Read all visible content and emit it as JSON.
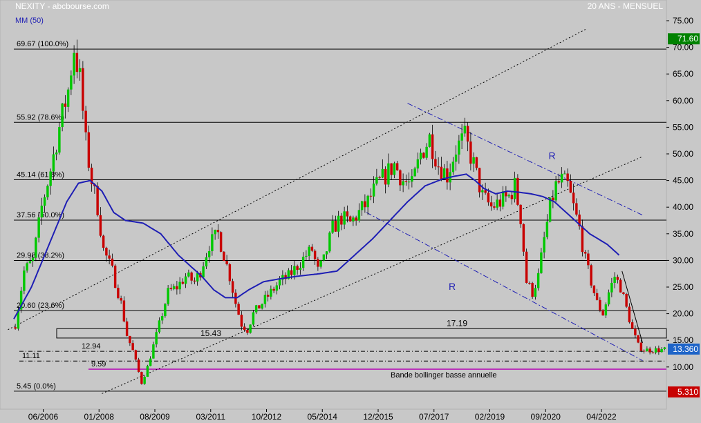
{
  "chart_data": {
    "type": "candlestick",
    "title": "NEXITY - abcbourse.com",
    "subtitle": "20 ANS - MENSUEL",
    "indicator_label": "MM (50)",
    "ylim": [
      4.5,
      77
    ],
    "y_ticks": [
      10,
      15,
      20,
      25,
      30,
      35,
      40,
      45,
      50,
      55,
      60,
      65,
      70,
      75
    ],
    "y_tick_labels": [
      "10.00",
      "15.00",
      "20.00",
      "25.00",
      "30.00",
      "35.00",
      "40.00",
      "45.00",
      "50.00",
      "55.00",
      "60.00",
      "65.00",
      "70.00",
      "75.00"
    ],
    "x_ticks": [
      {
        "label": "06/2006",
        "idx": 10
      },
      {
        "label": "01/2008",
        "idx": 29
      },
      {
        "label": "08/2009",
        "idx": 48
      },
      {
        "label": "03/2011",
        "idx": 67
      },
      {
        "label": "10/2012",
        "idx": 86
      },
      {
        "label": "05/2014",
        "idx": 105
      },
      {
        "label": "12/2015",
        "idx": 124
      },
      {
        "label": "07/2017",
        "idx": 143
      },
      {
        "label": "02/2019",
        "idx": 162
      },
      {
        "label": "09/2020",
        "idx": 181
      },
      {
        "label": "04/2022",
        "idx": 200
      }
    ],
    "n_periods": 222,
    "price_keypoints": [
      [
        0,
        18
      ],
      [
        3,
        28
      ],
      [
        6,
        30
      ],
      [
        9,
        40
      ],
      [
        12,
        47
      ],
      [
        15,
        55
      ],
      [
        18,
        62
      ],
      [
        20,
        70
      ],
      [
        22,
        64
      ],
      [
        24,
        52
      ],
      [
        26,
        45
      ],
      [
        28,
        40
      ],
      [
        30,
        32
      ],
      [
        33,
        28
      ],
      [
        36,
        22
      ],
      [
        38,
        16
      ],
      [
        40,
        13
      ],
      [
        42,
        9
      ],
      [
        43,
        7
      ],
      [
        45,
        10
      ],
      [
        47,
        14
      ],
      [
        50,
        20
      ],
      [
        52,
        24
      ],
      [
        55,
        25
      ],
      [
        58,
        27
      ],
      [
        61,
        26
      ],
      [
        63,
        28
      ],
      [
        66,
        33
      ],
      [
        69,
        35
      ],
      [
        71,
        31
      ],
      [
        73,
        27
      ],
      [
        75,
        22
      ],
      [
        77,
        18
      ],
      [
        79,
        17
      ],
      [
        81,
        20
      ],
      [
        84,
        22
      ],
      [
        87,
        24
      ],
      [
        90,
        26
      ],
      [
        93,
        27
      ],
      [
        96,
        29
      ],
      [
        99,
        31
      ],
      [
        101,
        32
      ],
      [
        103,
        28
      ],
      [
        105,
        30
      ],
      [
        108,
        36
      ],
      [
        111,
        38
      ],
      [
        114,
        37
      ],
      [
        117,
        39
      ],
      [
        120,
        41
      ],
      [
        123,
        44
      ],
      [
        126,
        46
      ],
      [
        129,
        48
      ],
      [
        132,
        45
      ],
      [
        135,
        44
      ],
      [
        138,
        50
      ],
      [
        141,
        53
      ],
      [
        144,
        48
      ],
      [
        147,
        46
      ],
      [
        150,
        51
      ],
      [
        153,
        53
      ],
      [
        156,
        48
      ],
      [
        159,
        42
      ],
      [
        162,
        40
      ],
      [
        165,
        41
      ],
      [
        168,
        42
      ],
      [
        170,
        44
      ],
      [
        172,
        38
      ],
      [
        174,
        26
      ],
      [
        176,
        24
      ],
      [
        178,
        27
      ],
      [
        180,
        34
      ],
      [
        182,
        40
      ],
      [
        184,
        44
      ],
      [
        186,
        45
      ],
      [
        188,
        44
      ],
      [
        190,
        40
      ],
      [
        192,
        36
      ],
      [
        194,
        30
      ],
      [
        196,
        26
      ],
      [
        198,
        22
      ],
      [
        200,
        20
      ],
      [
        202,
        24
      ],
      [
        204,
        27
      ],
      [
        206,
        25
      ],
      [
        208,
        21
      ],
      [
        210,
        17
      ],
      [
        212,
        14
      ],
      [
        214,
        13.2
      ]
    ],
    "mm50_keypoints": [
      [
        0,
        19
      ],
      [
        6,
        25
      ],
      [
        12,
        33
      ],
      [
        18,
        41
      ],
      [
        22,
        44.5
      ],
      [
        26,
        45
      ],
      [
        30,
        43
      ],
      [
        34,
        39
      ],
      [
        38,
        37.5
      ],
      [
        44,
        37
      ],
      [
        50,
        35
      ],
      [
        56,
        31
      ],
      [
        60,
        29
      ],
      [
        64,
        27
      ],
      [
        68,
        24.5
      ],
      [
        72,
        23
      ],
      [
        76,
        23
      ],
      [
        80,
        24.5
      ],
      [
        85,
        26
      ],
      [
        90,
        26.5
      ],
      [
        96,
        27
      ],
      [
        104,
        27.5
      ],
      [
        110,
        28
      ],
      [
        116,
        31
      ],
      [
        122,
        34
      ],
      [
        128,
        37.5
      ],
      [
        134,
        41
      ],
      [
        140,
        44
      ],
      [
        146,
        45.3
      ],
      [
        150,
        45.8
      ],
      [
        154,
        46.2
      ],
      [
        157,
        45
      ],
      [
        160,
        43.5
      ],
      [
        164,
        42.5
      ],
      [
        168,
        43
      ],
      [
        172,
        42.8
      ],
      [
        176,
        42.5
      ],
      [
        180,
        42
      ],
      [
        184,
        41
      ],
      [
        190,
        38
      ],
      [
        196,
        35
      ],
      [
        202,
        33
      ],
      [
        206,
        31
      ]
    ],
    "fib_levels": [
      {
        "value": 69.67,
        "label": "69.67  (100.0%)"
      },
      {
        "value": 55.92,
        "label": "55.92  (78.6%)"
      },
      {
        "value": 45.14,
        "label": "45.14  (61.8%)"
      },
      {
        "value": 37.56,
        "label": "37.56  (50.0%)"
      },
      {
        "value": 29.98,
        "label": "29.98  (38.2%)"
      },
      {
        "value": 20.6,
        "label": "20.60  (23.6%)"
      },
      {
        "value": 5.45,
        "label": "5.45  (0.0%)"
      }
    ],
    "levels": [
      {
        "value": 12.94,
        "label": "12.94"
      },
      {
        "value": 11.11,
        "label": "11.11"
      }
    ],
    "bollinger": {
      "value": 9.59,
      "label": "9.59",
      "name": "Bande bollinger basse annuelle",
      "color": "#b400b4"
    },
    "zone": {
      "low": 15.43,
      "high": 17.19,
      "low_label": "15.43",
      "high_label": "17.19"
    },
    "channel_lines": [
      {
        "style": "dotted",
        "color": "#000000",
        "points": [
          [
            30,
            5
          ],
          [
            214,
            49.5
          ]
        ]
      },
      {
        "style": "dotted",
        "color": "#000000",
        "points": [
          [
            -2,
            17
          ],
          [
            195,
            73.5
          ]
        ]
      },
      {
        "style": "dashdot",
        "color": "#1e1eb4",
        "points": [
          [
            120,
            39
          ],
          [
            214,
            11.2
          ]
        ]
      },
      {
        "style": "dashdot",
        "color": "#1e1eb4",
        "points": [
          [
            134,
            59.5
          ],
          [
            214,
            38.5
          ]
        ]
      },
      {
        "style": "solid",
        "color": "#000000",
        "points": [
          [
            207,
            28
          ],
          [
            214,
            14.5
          ]
        ]
      }
    ],
    "annotations": [
      {
        "text": "R",
        "idx": 182,
        "value": 49
      },
      {
        "text": "R",
        "idx": 148,
        "value": 24.5
      }
    ],
    "price_tags": [
      {
        "value": 71.6,
        "label": "71.60",
        "color": "#008200"
      },
      {
        "value": 13.36,
        "label": "13.360",
        "color": "#1e64c8"
      },
      {
        "value": 5.31,
        "label": "5.310",
        "color": "#c80000"
      }
    ],
    "colors": {
      "up": "#00c800",
      "down": "#c80000",
      "mm": "#1e1eb4",
      "background": "#c8c8c8"
    }
  }
}
